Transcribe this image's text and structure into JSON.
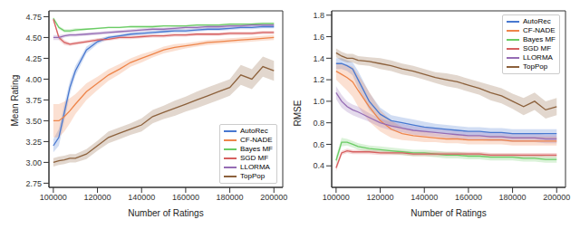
{
  "chart_data": [
    {
      "type": "line",
      "xlabel": "Number of Ratings",
      "ylabel": "Mean Rating",
      "x": [
        100000,
        102500,
        105000,
        107500,
        110000,
        115000,
        120000,
        125000,
        130000,
        135000,
        140000,
        145000,
        150000,
        155000,
        160000,
        165000,
        170000,
        175000,
        180000,
        185000,
        190000,
        195000,
        200000
      ],
      "xlim": [
        98000,
        204000
      ],
      "xticks": [
        100000,
        120000,
        140000,
        160000,
        180000,
        200000
      ],
      "ylim": [
        2.7,
        4.82
      ],
      "yticks": [
        2.75,
        {
          "value": 3,
          "label": "3.00"
        },
        3.25,
        {
          "value": 3.5,
          "label": "3.50"
        },
        3.75,
        {
          "value": 4,
          "label": "4.00"
        },
        4.25,
        {
          "value": 4.5,
          "label": "4.50"
        },
        4.75
      ],
      "legend": "lower right",
      "series": [
        {
          "name": "AutoRec",
          "color": "#4878d0",
          "values": [
            3.2,
            3.3,
            3.6,
            3.9,
            4.1,
            4.35,
            4.45,
            4.5,
            4.52,
            4.54,
            4.55,
            4.56,
            4.57,
            4.58,
            4.58,
            4.59,
            4.6,
            4.6,
            4.61,
            4.62,
            4.62,
            4.63,
            4.63
          ],
          "errors": [
            0.08,
            0.1,
            0.1,
            0.08,
            0.06,
            0.04,
            0.03,
            0.02,
            0.02,
            0.02,
            0.02,
            0.02,
            0.02,
            0.02,
            0.02,
            0.02,
            0.02,
            0.02,
            0.02,
            0.02,
            0.02,
            0.02,
            0.02
          ]
        },
        {
          "name": "CF-NADE",
          "color": "#ee854a",
          "values": [
            3.5,
            3.5,
            3.55,
            3.62,
            3.7,
            3.85,
            3.95,
            4.05,
            4.12,
            4.2,
            4.25,
            4.3,
            4.35,
            4.38,
            4.4,
            4.42,
            4.44,
            4.45,
            4.46,
            4.47,
            4.48,
            4.49,
            4.5
          ],
          "errors": [
            0.2,
            0.2,
            0.18,
            0.15,
            0.12,
            0.1,
            0.08,
            0.07,
            0.06,
            0.05,
            0.05,
            0.04,
            0.04,
            0.04,
            0.03,
            0.03,
            0.03,
            0.03,
            0.03,
            0.03,
            0.03,
            0.03,
            0.03
          ]
        },
        {
          "name": "Bayes MF",
          "color": "#6acc64",
          "values": [
            4.73,
            4.62,
            4.58,
            4.58,
            4.59,
            4.6,
            4.61,
            4.62,
            4.62,
            4.63,
            4.63,
            4.63,
            4.64,
            4.64,
            4.64,
            4.65,
            4.65,
            4.65,
            4.66,
            4.66,
            4.66,
            4.67,
            4.67
          ],
          "errors": [
            0.02,
            0.02,
            0.02,
            0.02,
            0.02,
            0.01,
            0.01,
            0.01,
            0.01,
            0.01,
            0.01,
            0.01,
            0.01,
            0.01,
            0.01,
            0.01,
            0.01,
            0.01,
            0.01,
            0.01,
            0.01,
            0.01,
            0.01
          ]
        },
        {
          "name": "SGD MF",
          "color": "#d65f5f",
          "values": [
            4.72,
            4.5,
            4.44,
            4.42,
            4.43,
            4.45,
            4.47,
            4.48,
            4.5,
            4.5,
            4.51,
            4.52,
            4.52,
            4.53,
            4.53,
            4.54,
            4.54,
            4.54,
            4.55,
            4.55,
            4.55,
            4.56,
            4.56
          ],
          "errors": [
            0.02,
            0.03,
            0.03,
            0.02,
            0.02,
            0.02,
            0.02,
            0.02,
            0.02,
            0.02,
            0.02,
            0.02,
            0.02,
            0.02,
            0.02,
            0.02,
            0.02,
            0.02,
            0.02,
            0.02,
            0.02,
            0.02,
            0.02
          ]
        },
        {
          "name": "LLORMA",
          "color": "#956cb4",
          "values": [
            4.5,
            4.5,
            4.52,
            4.53,
            4.53,
            4.54,
            4.55,
            4.56,
            4.57,
            4.58,
            4.59,
            4.6,
            4.6,
            4.61,
            4.62,
            4.62,
            4.63,
            4.63,
            4.64,
            4.64,
            4.65,
            4.65,
            4.65
          ],
          "errors": [
            0.03,
            0.03,
            0.02,
            0.02,
            0.02,
            0.02,
            0.02,
            0.02,
            0.02,
            0.02,
            0.02,
            0.02,
            0.02,
            0.02,
            0.02,
            0.02,
            0.02,
            0.02,
            0.02,
            0.02,
            0.02,
            0.02,
            0.02
          ]
        },
        {
          "name": "TopPop",
          "color": "#8c613c",
          "values": [
            3.0,
            3.02,
            3.03,
            3.05,
            3.05,
            3.1,
            3.2,
            3.3,
            3.35,
            3.4,
            3.45,
            3.55,
            3.6,
            3.65,
            3.7,
            3.75,
            3.8,
            3.85,
            3.9,
            4.05,
            4.0,
            4.15,
            4.1
          ],
          "errors": [
            0.05,
            0.05,
            0.05,
            0.05,
            0.05,
            0.06,
            0.06,
            0.07,
            0.07,
            0.07,
            0.08,
            0.08,
            0.08,
            0.09,
            0.09,
            0.1,
            0.1,
            0.1,
            0.1,
            0.12,
            0.12,
            0.12,
            0.12
          ]
        }
      ]
    },
    {
      "type": "line",
      "xlabel": "Number of Ratings",
      "ylabel": "RMSE",
      "x": [
        100000,
        102500,
        105000,
        107500,
        110000,
        115000,
        120000,
        125000,
        130000,
        135000,
        140000,
        145000,
        150000,
        155000,
        160000,
        165000,
        170000,
        175000,
        180000,
        185000,
        190000,
        195000,
        200000
      ],
      "xlim": [
        98000,
        204000
      ],
      "xticks": [
        100000,
        120000,
        140000,
        160000,
        180000,
        200000
      ],
      "ylim": [
        0.2,
        1.84
      ],
      "yticks": [
        0.4,
        0.6,
        0.8,
        {
          "value": 1,
          "label": "1.0"
        },
        1.2,
        1.4,
        1.6,
        1.8
      ],
      "legend": "upper right",
      "series": [
        {
          "name": "AutoRec",
          "color": "#4878d0",
          "values": [
            1.35,
            1.35,
            1.33,
            1.3,
            1.2,
            1.0,
            0.88,
            0.82,
            0.8,
            0.78,
            0.76,
            0.75,
            0.74,
            0.73,
            0.72,
            0.72,
            0.71,
            0.71,
            0.7,
            0.7,
            0.7,
            0.7,
            0.7
          ],
          "errors": [
            0.05,
            0.05,
            0.05,
            0.06,
            0.08,
            0.08,
            0.06,
            0.05,
            0.05,
            0.05,
            0.05,
            0.04,
            0.04,
            0.04,
            0.04,
            0.04,
            0.04,
            0.04,
            0.04,
            0.04,
            0.04,
            0.04,
            0.04
          ]
        },
        {
          "name": "CF-NADE",
          "color": "#ee854a",
          "values": [
            1.28,
            1.25,
            1.22,
            1.18,
            1.1,
            0.95,
            0.82,
            0.74,
            0.7,
            0.68,
            0.67,
            0.66,
            0.65,
            0.65,
            0.64,
            0.64,
            0.64,
            0.64,
            0.63,
            0.63,
            0.63,
            0.63,
            0.63
          ],
          "errors": [
            0.08,
            0.1,
            0.12,
            0.14,
            0.15,
            0.14,
            0.1,
            0.08,
            0.06,
            0.05,
            0.05,
            0.04,
            0.04,
            0.04,
            0.04,
            0.04,
            0.04,
            0.04,
            0.04,
            0.04,
            0.04,
            0.04,
            0.04
          ]
        },
        {
          "name": "Bayes MF",
          "color": "#6acc64",
          "values": [
            0.45,
            0.62,
            0.62,
            0.6,
            0.58,
            0.56,
            0.55,
            0.54,
            0.53,
            0.52,
            0.52,
            0.51,
            0.5,
            0.5,
            0.49,
            0.49,
            0.48,
            0.48,
            0.48,
            0.47,
            0.47,
            0.46,
            0.46
          ],
          "errors": [
            0.04,
            0.04,
            0.03,
            0.03,
            0.03,
            0.03,
            0.03,
            0.03,
            0.03,
            0.03,
            0.03,
            0.03,
            0.03,
            0.03,
            0.03,
            0.03,
            0.03,
            0.03,
            0.03,
            0.03,
            0.03,
            0.03,
            0.03
          ]
        },
        {
          "name": "SGD MF",
          "color": "#d65f5f",
          "values": [
            0.38,
            0.52,
            0.54,
            0.53,
            0.53,
            0.53,
            0.52,
            0.52,
            0.52,
            0.51,
            0.51,
            0.51,
            0.51,
            0.51,
            0.51,
            0.51,
            0.5,
            0.5,
            0.5,
            0.5,
            0.5,
            0.5,
            0.5
          ],
          "errors": [
            0.03,
            0.02,
            0.02,
            0.02,
            0.02,
            0.02,
            0.02,
            0.02,
            0.02,
            0.02,
            0.02,
            0.02,
            0.02,
            0.02,
            0.02,
            0.02,
            0.02,
            0.02,
            0.02,
            0.02,
            0.02,
            0.02,
            0.02
          ]
        },
        {
          "name": "LLORMA",
          "color": "#956cb4",
          "values": [
            1.08,
            1.0,
            0.95,
            0.92,
            0.9,
            0.85,
            0.8,
            0.77,
            0.75,
            0.73,
            0.72,
            0.71,
            0.7,
            0.69,
            0.68,
            0.68,
            0.67,
            0.67,
            0.66,
            0.66,
            0.66,
            0.65,
            0.65
          ],
          "errors": [
            0.06,
            0.06,
            0.05,
            0.05,
            0.05,
            0.04,
            0.04,
            0.04,
            0.04,
            0.04,
            0.04,
            0.04,
            0.04,
            0.04,
            0.04,
            0.04,
            0.04,
            0.04,
            0.04,
            0.04,
            0.04,
            0.04,
            0.04
          ]
        },
        {
          "name": "TopPop",
          "color": "#8c613c",
          "values": [
            1.45,
            1.42,
            1.4,
            1.4,
            1.38,
            1.37,
            1.35,
            1.33,
            1.3,
            1.28,
            1.25,
            1.22,
            1.2,
            1.18,
            1.15,
            1.12,
            1.08,
            1.05,
            1.0,
            0.95,
            1.0,
            0.92,
            0.95
          ],
          "errors": [
            0.04,
            0.04,
            0.04,
            0.04,
            0.04,
            0.04,
            0.05,
            0.05,
            0.05,
            0.05,
            0.05,
            0.05,
            0.06,
            0.06,
            0.06,
            0.06,
            0.07,
            0.07,
            0.07,
            0.08,
            0.08,
            0.08,
            0.08
          ]
        }
      ]
    }
  ]
}
